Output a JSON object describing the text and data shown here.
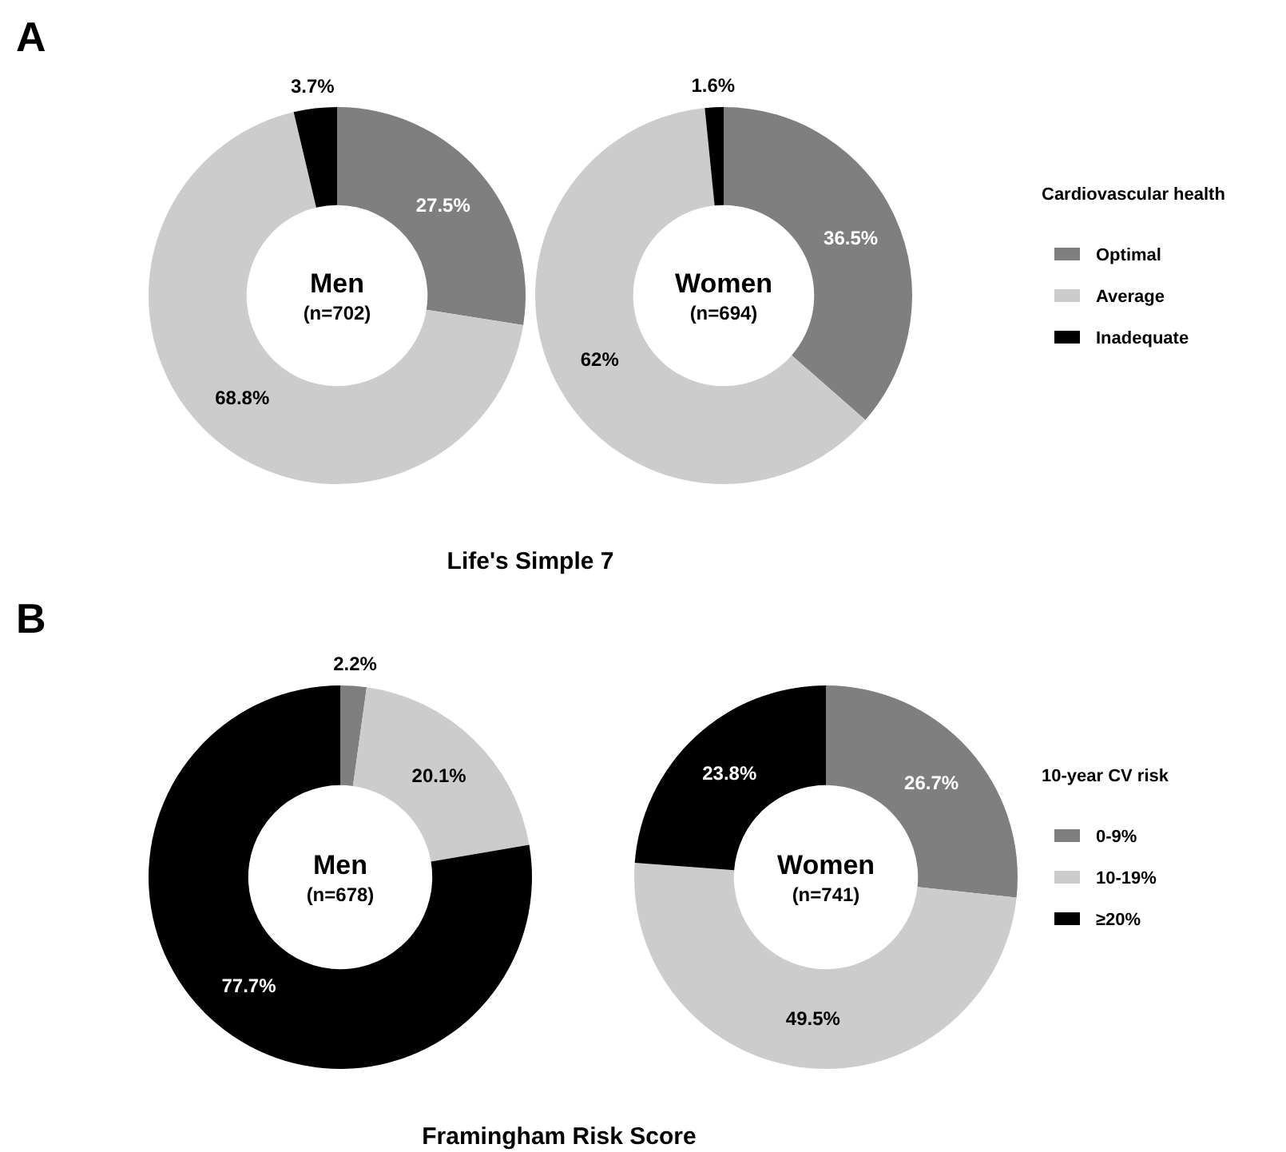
{
  "chart_data": [
    {
      "type": "donut",
      "title": "Life's Simple 7",
      "categories": [
        "Optimal",
        "Average",
        "Inadequate"
      ],
      "colors": [
        "#7f7f7f",
        "#cccccc",
        "#000000"
      ],
      "series": [
        {
          "name": "Men",
          "values": [
            27.5,
            68.8,
            3.7
          ],
          "value_labels": [
            "27.5%",
            "68.8%",
            "3.7%"
          ]
        },
        {
          "name": "Women",
          "values": [
            36.5,
            62,
            1.6
          ],
          "value_labels": [
            "36.5%",
            "62%",
            "1.6%"
          ]
        }
      ],
      "data_labels": true,
      "legend": "right",
      "legend_title": "Cardiovascular health",
      "annotations": [
        "A",
        "(n=702)",
        "(n=694)"
      ]
    },
    {
      "type": "donut",
      "title": "Framingham Risk Score",
      "categories": [
        "0-9%",
        "10-19%",
        "≥20%"
      ],
      "colors": [
        "#7f7f7f",
        "#cccccc",
        "#000000"
      ],
      "series": [
        {
          "name": "Men",
          "values": [
            2.2,
            20.1,
            77.7
          ],
          "value_labels": [
            "2.2%",
            "20.1%",
            "77.7%"
          ]
        },
        {
          "name": "Women",
          "values": [
            26.7,
            49.5,
            23.8
          ],
          "value_labels": [
            "26.7%",
            "49.5%",
            "23.8%"
          ]
        }
      ],
      "data_labels": true,
      "legend": "right",
      "legend_title": "10-year CV risk",
      "annotations": [
        "B",
        "(n=678)",
        "(n=741)"
      ]
    }
  ]
}
